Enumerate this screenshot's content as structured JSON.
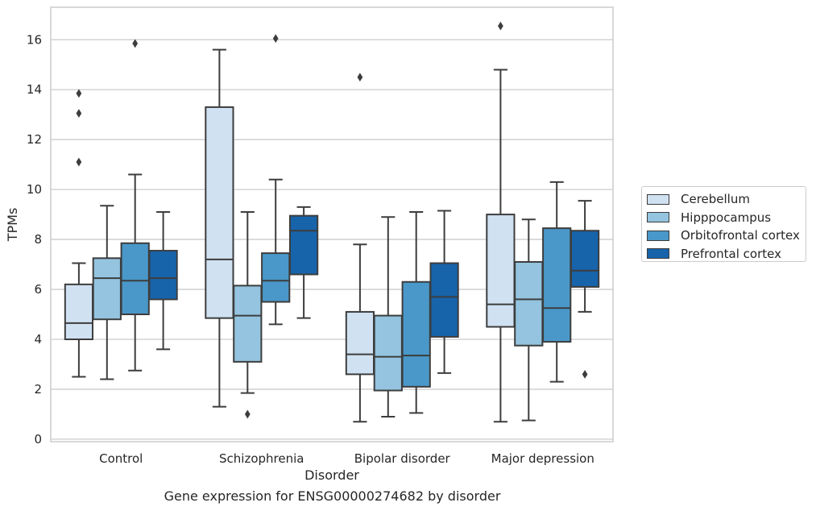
{
  "chart_data": {
    "type": "box",
    "caption": "Gene expression for ENSG00000274682 by disorder",
    "xlabel": "Disorder",
    "ylabel": "TPMs",
    "ylim": [
      -0.1,
      17.3
    ],
    "yticks": [
      0,
      2,
      4,
      6,
      8,
      10,
      12,
      14,
      16
    ],
    "grid": "horizontal",
    "legend_position": "right",
    "categories": [
      "Control",
      "Schizophrenia",
      "Bipolar disorder",
      "Major depression"
    ],
    "series": [
      {
        "name": "Cerebellum",
        "color": "#d0e1f2",
        "boxes": [
          {
            "whisker_low": 2.5,
            "q1": 4.0,
            "median": 4.65,
            "q3": 6.2,
            "whisker_high": 7.05,
            "outliers": [
              11.1,
              13.05,
              13.85
            ]
          },
          {
            "whisker_low": 1.3,
            "q1": 4.85,
            "median": 7.2,
            "q3": 13.3,
            "whisker_high": 15.6,
            "outliers": []
          },
          {
            "whisker_low": 0.7,
            "q1": 2.6,
            "median": 3.4,
            "q3": 5.1,
            "whisker_high": 7.8,
            "outliers": [
              14.5
            ]
          },
          {
            "whisker_low": 0.7,
            "q1": 4.5,
            "median": 5.4,
            "q3": 9.0,
            "whisker_high": 14.8,
            "outliers": [
              16.55
            ]
          }
        ]
      },
      {
        "name": "Hipppocampus",
        "color": "#94c4df",
        "boxes": [
          {
            "whisker_low": 2.4,
            "q1": 4.8,
            "median": 6.45,
            "q3": 7.25,
            "whisker_high": 9.35,
            "outliers": []
          },
          {
            "whisker_low": 1.85,
            "q1": 3.1,
            "median": 4.95,
            "q3": 6.15,
            "whisker_high": 9.1,
            "outliers": [
              1.0
            ]
          },
          {
            "whisker_low": 0.9,
            "q1": 1.95,
            "median": 3.3,
            "q3": 4.95,
            "whisker_high": 8.9,
            "outliers": []
          },
          {
            "whisker_low": 0.75,
            "q1": 3.75,
            "median": 5.6,
            "q3": 7.1,
            "whisker_high": 8.8,
            "outliers": []
          }
        ]
      },
      {
        "name": "Orbitofrontal cortex",
        "color": "#4a98c9",
        "boxes": [
          {
            "whisker_low": 2.75,
            "q1": 5.0,
            "median": 6.35,
            "q3": 7.85,
            "whisker_high": 10.6,
            "outliers": [
              15.85
            ]
          },
          {
            "whisker_low": 4.6,
            "q1": 5.5,
            "median": 6.35,
            "q3": 7.45,
            "whisker_high": 10.4,
            "outliers": [
              16.05
            ]
          },
          {
            "whisker_low": 1.05,
            "q1": 2.1,
            "median": 3.35,
            "q3": 6.3,
            "whisker_high": 9.1,
            "outliers": []
          },
          {
            "whisker_low": 2.3,
            "q1": 3.9,
            "median": 5.25,
            "q3": 8.45,
            "whisker_high": 10.3,
            "outliers": []
          }
        ]
      },
      {
        "name": "Prefrontal cortex",
        "color": "#1764ab",
        "boxes": [
          {
            "whisker_low": 3.6,
            "q1": 5.6,
            "median": 6.45,
            "q3": 7.55,
            "whisker_high": 9.1,
            "outliers": []
          },
          {
            "whisker_low": 4.85,
            "q1": 6.6,
            "median": 8.35,
            "q3": 8.95,
            "whisker_high": 9.3,
            "outliers": []
          },
          {
            "whisker_low": 2.65,
            "q1": 4.1,
            "median": 5.7,
            "q3": 7.05,
            "whisker_high": 9.15,
            "outliers": []
          },
          {
            "whisker_low": 5.1,
            "q1": 6.1,
            "median": 6.75,
            "q3": 8.35,
            "whisker_high": 9.55,
            "outliers": [
              2.6
            ]
          }
        ]
      }
    ]
  }
}
